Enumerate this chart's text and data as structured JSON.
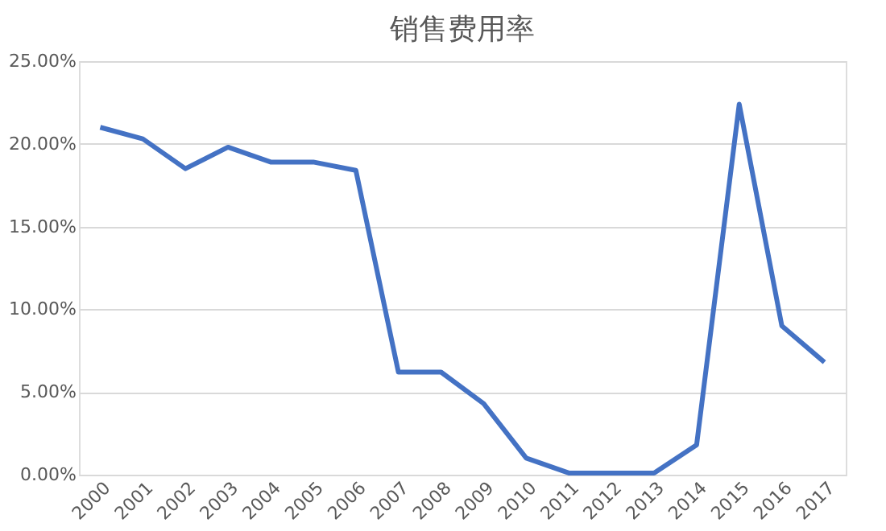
{
  "chart_data": {
    "type": "line",
    "title": "销售费用率",
    "categories": [
      "2000",
      "2001",
      "2002",
      "2003",
      "2004",
      "2005",
      "2006",
      "2007",
      "2008",
      "2009",
      "2010",
      "2011",
      "2012",
      "2013",
      "2014",
      "2015",
      "2016",
      "2017"
    ],
    "series": [
      {
        "color": "#4472c4",
        "values": [
          21.0,
          20.3,
          18.5,
          19.8,
          18.9,
          18.9,
          18.4,
          6.2,
          6.2,
          4.3,
          1.0,
          0.1,
          0.1,
          0.1,
          1.8,
          22.4,
          9.0,
          6.8
        ]
      }
    ],
    "ylim": [
      0,
      25
    ],
    "yticks": [
      {
        "value": 0,
        "label": "0.00%"
      },
      {
        "value": 5,
        "label": "5.00%"
      },
      {
        "value": 10,
        "label": "10.00%"
      },
      {
        "value": 15,
        "label": "15.00%"
      },
      {
        "value": 20,
        "label": "20.00%"
      },
      {
        "value": 25,
        "label": "25.00%"
      }
    ],
    "grid": "y",
    "legend": false,
    "marker": "none",
    "line_style": "solid"
  }
}
